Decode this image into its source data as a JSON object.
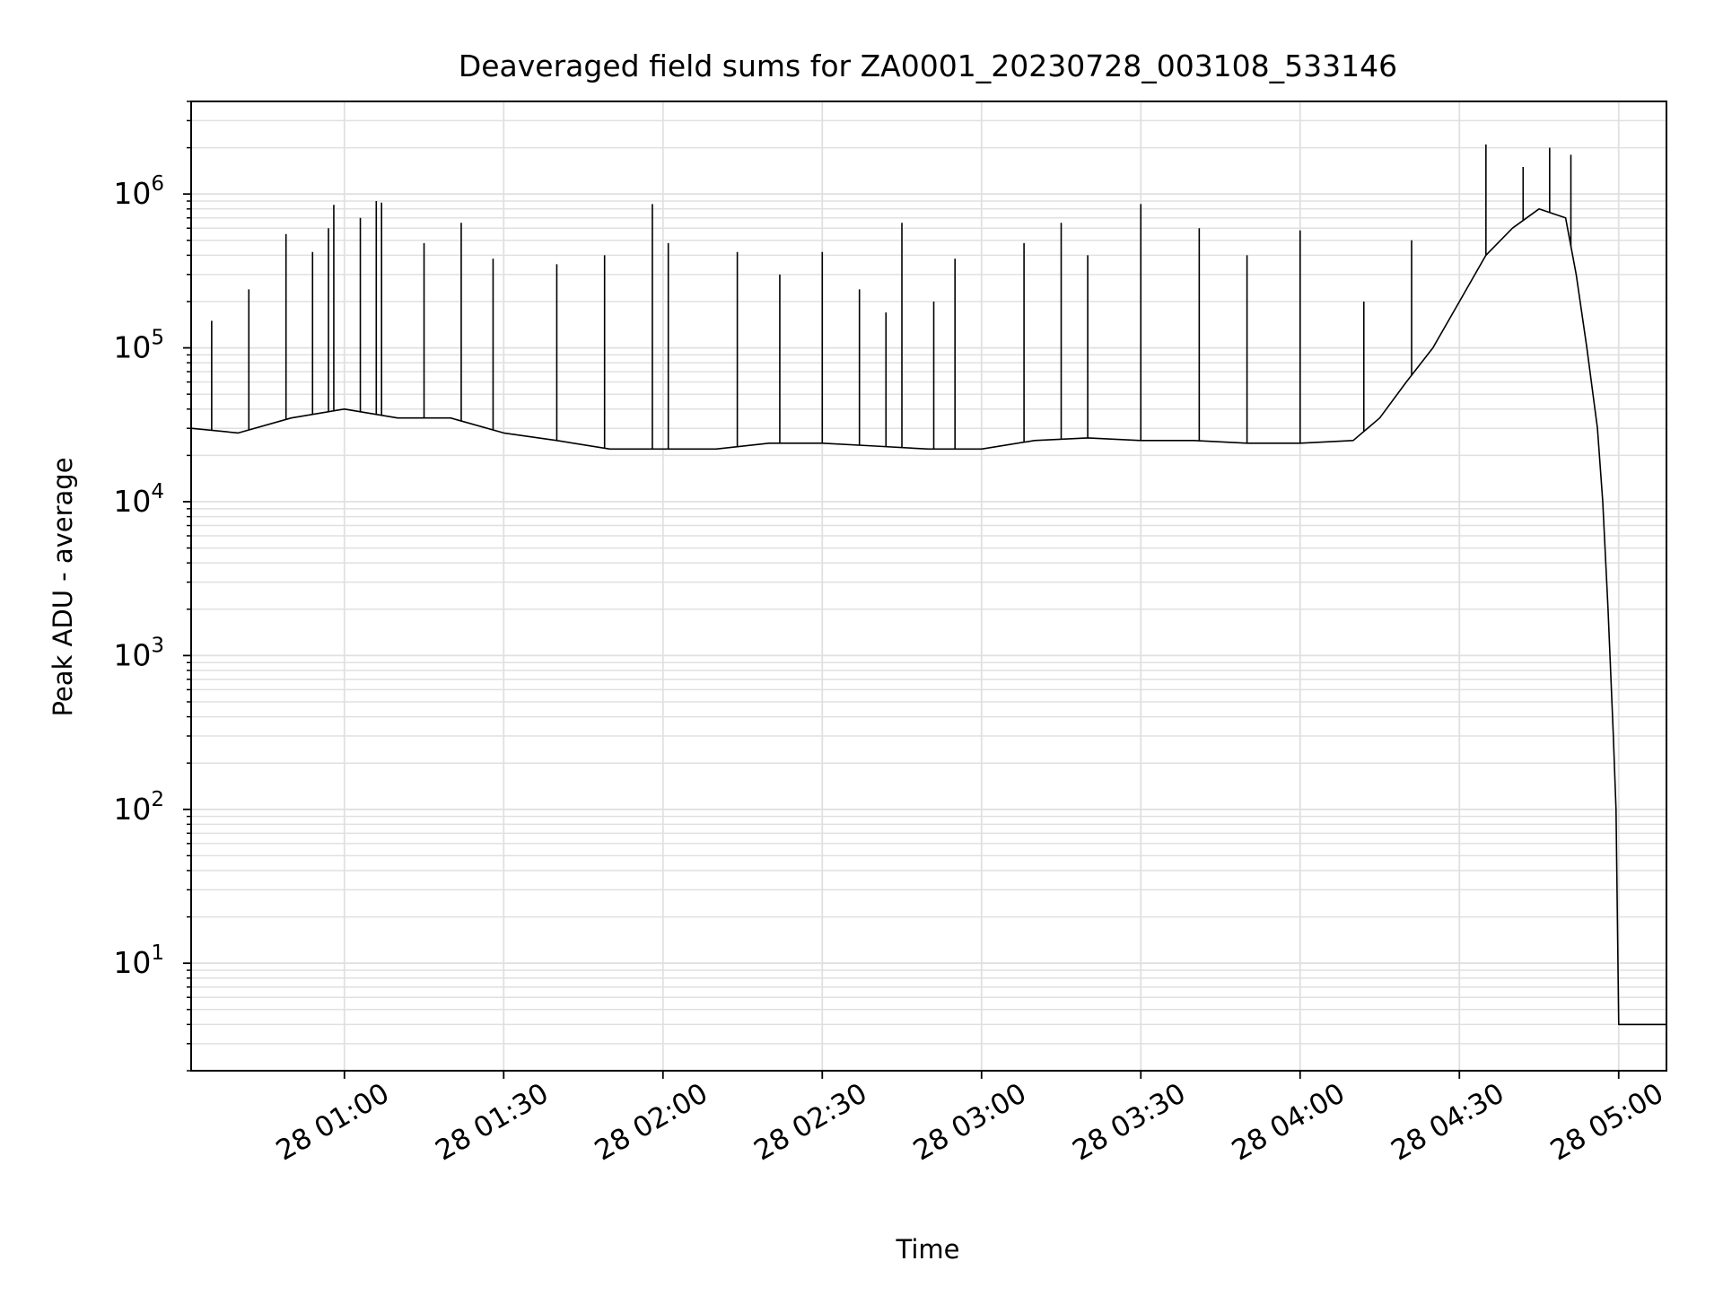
{
  "chart_data": {
    "type": "line",
    "title": "Deaveraged field sums for ZA0001_20230728_003108_533146",
    "xlabel": "Time",
    "ylabel": "Peak ADU - average",
    "yscale": "log",
    "grid": true,
    "legend": "none",
    "line_color": "#000000",
    "grid_color": "#e0e0e0",
    "xlim": [
      "2023-07-28 00:31:08",
      "2023-07-28 05:09:00"
    ],
    "ylim": [
      2,
      4000000
    ],
    "x_ticks": [
      {
        "t": "2023-07-28 01:00",
        "label": "28 01:00"
      },
      {
        "t": "2023-07-28 01:30",
        "label": "28 01:30"
      },
      {
        "t": "2023-07-28 02:00",
        "label": "28 02:00"
      },
      {
        "t": "2023-07-28 02:30",
        "label": "28 02:30"
      },
      {
        "t": "2023-07-28 03:00",
        "label": "28 03:00"
      },
      {
        "t": "2023-07-28 03:30",
        "label": "28 03:30"
      },
      {
        "t": "2023-07-28 04:00",
        "label": "28 04:00"
      },
      {
        "t": "2023-07-28 04:30",
        "label": "28 04:30"
      },
      {
        "t": "2023-07-28 05:00",
        "label": "28 05:00"
      }
    ],
    "y_ticks": [
      {
        "value": 10,
        "base": "10",
        "exp": "1"
      },
      {
        "value": 100,
        "base": "10",
        "exp": "2"
      },
      {
        "value": 1000,
        "base": "10",
        "exp": "3"
      },
      {
        "value": 10000,
        "base": "10",
        "exp": "4"
      },
      {
        "value": 100000,
        "base": "10",
        "exp": "5"
      },
      {
        "value": 1000000,
        "base": "10",
        "exp": "6"
      }
    ],
    "series": [
      {
        "points": [
          [
            "2023-07-28 00:31:08",
            30000
          ],
          [
            "2023-07-28 00:40:00",
            28000
          ],
          [
            "2023-07-28 00:50:00",
            35000
          ],
          [
            "2023-07-28 01:00:00",
            40000
          ],
          [
            "2023-07-28 01:10:00",
            35000
          ],
          [
            "2023-07-28 01:20:00",
            35000
          ],
          [
            "2023-07-28 01:30:00",
            28000
          ],
          [
            "2023-07-28 01:40:00",
            25000
          ],
          [
            "2023-07-28 01:50:00",
            22000
          ],
          [
            "2023-07-28 02:00:00",
            22000
          ],
          [
            "2023-07-28 02:10:00",
            22000
          ],
          [
            "2023-07-28 02:20:00",
            24000
          ],
          [
            "2023-07-28 02:30:00",
            24000
          ],
          [
            "2023-07-28 02:40:00",
            23000
          ],
          [
            "2023-07-28 02:50:00",
            22000
          ],
          [
            "2023-07-28 03:00:00",
            22000
          ],
          [
            "2023-07-28 03:10:00",
            25000
          ],
          [
            "2023-07-28 03:20:00",
            26000
          ],
          [
            "2023-07-28 03:30:00",
            25000
          ],
          [
            "2023-07-28 03:40:00",
            25000
          ],
          [
            "2023-07-28 03:50:00",
            24000
          ],
          [
            "2023-07-28 04:00:00",
            24000
          ],
          [
            "2023-07-28 04:10:00",
            25000
          ],
          [
            "2023-07-28 04:15:00",
            35000
          ],
          [
            "2023-07-28 04:20:00",
            60000
          ],
          [
            "2023-07-28 04:25:00",
            100000
          ],
          [
            "2023-07-28 04:30:00",
            200000
          ],
          [
            "2023-07-28 04:35:00",
            400000
          ],
          [
            "2023-07-28 04:40:00",
            600000
          ],
          [
            "2023-07-28 04:45:00",
            800000
          ],
          [
            "2023-07-28 04:50:00",
            700000
          ],
          [
            "2023-07-28 04:52:00",
            300000
          ],
          [
            "2023-07-28 04:54:00",
            100000
          ],
          [
            "2023-07-28 04:56:00",
            30000
          ],
          [
            "2023-07-28 04:57:00",
            10000
          ],
          [
            "2023-07-28 04:58:00",
            2000
          ],
          [
            "2023-07-28 04:59:00",
            300
          ],
          [
            "2023-07-28 04:59:30",
            100
          ],
          [
            "2023-07-28 05:00:00",
            4
          ],
          [
            "2023-07-28 05:09:00",
            4
          ]
        ],
        "spikes": [
          [
            "2023-07-28 00:35:00",
            150000
          ],
          [
            "2023-07-28 00:42:00",
            240000
          ],
          [
            "2023-07-28 00:49:00",
            550000
          ],
          [
            "2023-07-28 00:54:00",
            420000
          ],
          [
            "2023-07-28 00:57:00",
            600000
          ],
          [
            "2023-07-28 00:58:00",
            850000
          ],
          [
            "2023-07-28 01:03:00",
            700000
          ],
          [
            "2023-07-28 01:06:00",
            900000
          ],
          [
            "2023-07-28 01:07:00",
            880000
          ],
          [
            "2023-07-28 01:15:00",
            480000
          ],
          [
            "2023-07-28 01:22:00",
            650000
          ],
          [
            "2023-07-28 01:28:00",
            380000
          ],
          [
            "2023-07-28 01:40:00",
            350000
          ],
          [
            "2023-07-28 01:49:00",
            400000
          ],
          [
            "2023-07-28 01:58:00",
            860000
          ],
          [
            "2023-07-28 02:01:00",
            480000
          ],
          [
            "2023-07-28 02:14:00",
            420000
          ],
          [
            "2023-07-28 02:22:00",
            300000
          ],
          [
            "2023-07-28 02:30:00",
            420000
          ],
          [
            "2023-07-28 02:37:00",
            240000
          ],
          [
            "2023-07-28 02:42:00",
            170000
          ],
          [
            "2023-07-28 02:45:00",
            650000
          ],
          [
            "2023-07-28 02:51:00",
            200000
          ],
          [
            "2023-07-28 02:55:00",
            380000
          ],
          [
            "2023-07-28 03:08:00",
            480000
          ],
          [
            "2023-07-28 03:15:00",
            650000
          ],
          [
            "2023-07-28 03:20:00",
            400000
          ],
          [
            "2023-07-28 03:30:00",
            860000
          ],
          [
            "2023-07-28 03:41:00",
            600000
          ],
          [
            "2023-07-28 03:50:00",
            400000
          ],
          [
            "2023-07-28 04:00:00",
            580000
          ],
          [
            "2023-07-28 04:12:00",
            200000
          ],
          [
            "2023-07-28 04:21:00",
            500000
          ],
          [
            "2023-07-28 04:35:00",
            2100000
          ],
          [
            "2023-07-28 04:42:00",
            1500000
          ],
          [
            "2023-07-28 04:47:00",
            2000000
          ],
          [
            "2023-07-28 04:51:00",
            1800000
          ]
        ]
      }
    ]
  }
}
